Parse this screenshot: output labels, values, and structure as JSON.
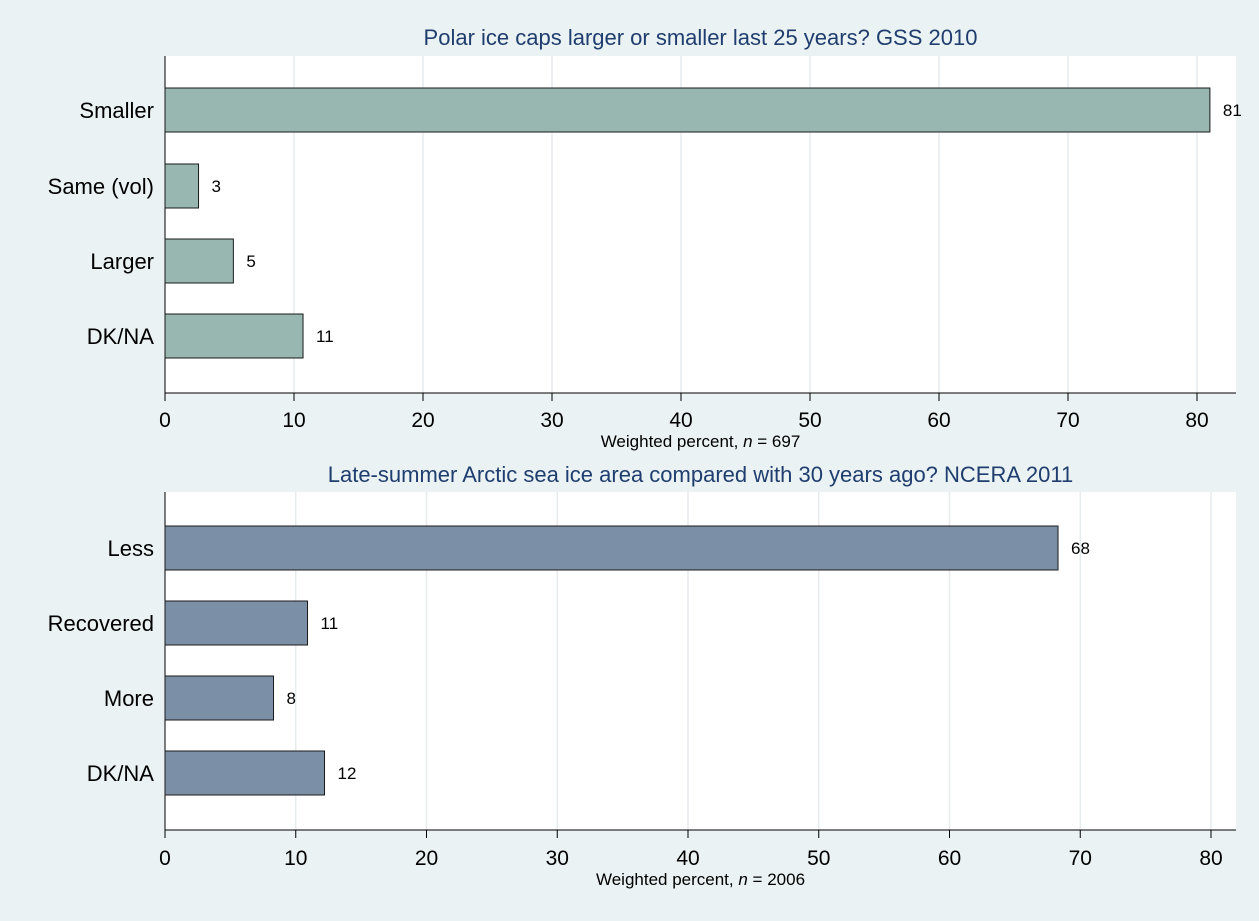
{
  "chart_data": [
    {
      "type": "bar",
      "orientation": "horizontal",
      "title": "Polar ice caps larger or smaller last 25 years?  GSS 2010",
      "categories": [
        "Smaller",
        "Same (vol)",
        "Larger",
        "DK/NA"
      ],
      "values": [
        81.0,
        2.6,
        5.3,
        10.7
      ],
      "value_labels": [
        "81",
        "3",
        "5",
        "11"
      ],
      "xlabel": {
        "prefix": "Weighted percent,",
        "n_symbol": "n",
        "n_text": " = 697"
      },
      "xlim": [
        0,
        83
      ],
      "xticks": [
        0,
        10,
        20,
        30,
        40,
        50,
        60,
        70,
        80
      ],
      "grid": true,
      "bar_color": "#97b7b0"
    },
    {
      "type": "bar",
      "orientation": "horizontal",
      "title": "Late-summer Arctic sea ice area compared with 30 years ago?  NCERA 2011",
      "categories": [
        "Less",
        "Recovered",
        "More",
        "DK/NA"
      ],
      "values": [
        68.3,
        10.9,
        8.3,
        12.2
      ],
      "value_labels": [
        "68",
        "11",
        "8",
        "12"
      ],
      "xlabel": {
        "prefix": "Weighted percent,",
        "n_symbol": "n",
        "n_text": " = 2006"
      },
      "xlim": [
        0,
        82
      ],
      "xticks": [
        0,
        10,
        20,
        30,
        40,
        50,
        60,
        70,
        80
      ],
      "grid": true,
      "bar_color": "#7b90a7"
    }
  ]
}
